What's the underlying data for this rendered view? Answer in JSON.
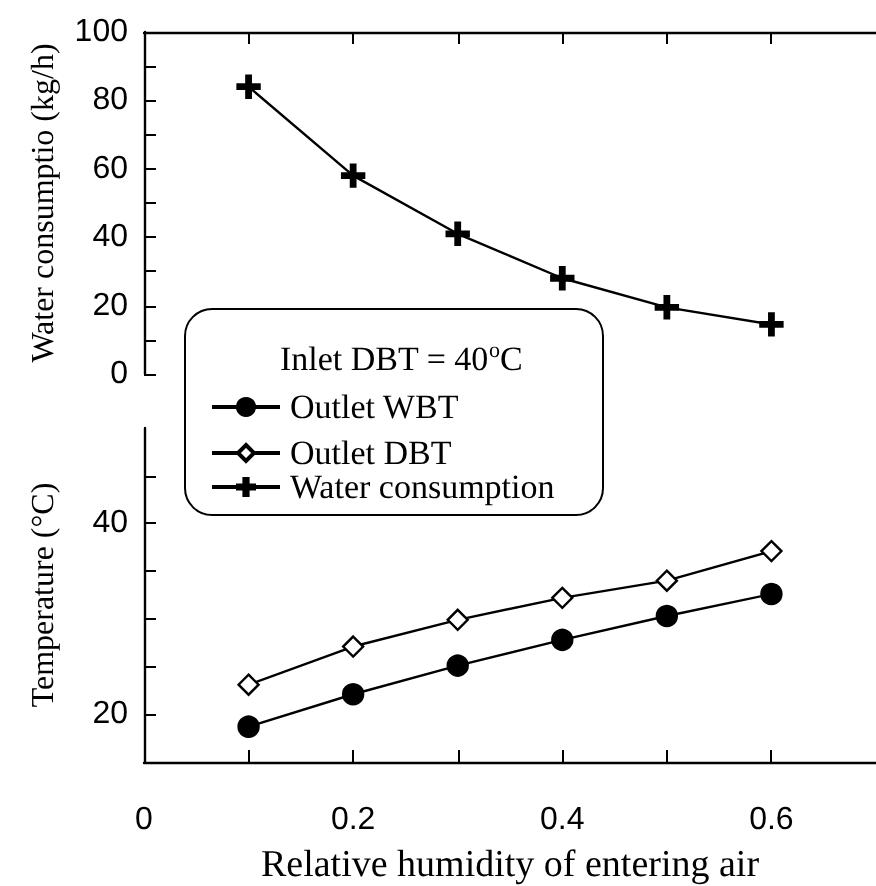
{
  "chart_data": [
    {
      "type": "line",
      "ylabel": "Water consumptio (kg/h)",
      "x": [
        0.1,
        0.2,
        0.3,
        0.4,
        0.5,
        0.6
      ],
      "series": [
        {
          "name": "Water consumption",
          "color": "#000000",
          "marker": "cross",
          "values": [
            84,
            58,
            41,
            28,
            19.5,
            14.5
          ]
        }
      ],
      "xlim": [
        0,
        0.7
      ],
      "xticks": [
        0,
        {
          "value": 0.1,
          "label": null
        },
        0.2,
        {
          "value": 0.3,
          "label": null
        },
        0.4,
        {
          "value": 0.5,
          "label": null
        },
        0.6,
        {
          "value": 0.7,
          "label": null
        }
      ],
      "ylim": [
        0,
        100
      ],
      "yticks": [
        0,
        {
          "value": 10,
          "label": null
        },
        20,
        {
          "value": 30,
          "label": null
        },
        40,
        {
          "value": 50,
          "label": null
        },
        60,
        {
          "value": 70,
          "label": null
        },
        80,
        {
          "value": 90,
          "label": null
        },
        100
      ],
      "tick_labels": "y",
      "grid": false,
      "legend": "bottom left"
    },
    {
      "type": "line",
      "xlabel": "Relative humidity of entering air",
      "ylabel": "Temperature (°C)",
      "legend_title": "Inlet DBT = 40$^{o}$C",
      "x": [
        0.1,
        0.2,
        0.3,
        0.4,
        0.5,
        0.6
      ],
      "series": [
        {
          "name": "Outlet WBT",
          "color": "#000000",
          "marker": "circle",
          "values": [
            18.7,
            22.1,
            25.1,
            27.8,
            30.3,
            32.6
          ]
        },
        {
          "name": "Outlet DBT",
          "color": "#000000",
          "marker": "diamond",
          "values": [
            23.1,
            27.1,
            29.9,
            32.2,
            34.0,
            37.1
          ]
        }
      ],
      "xlim": [
        0,
        0.7
      ],
      "xticks": [
        0,
        {
          "value": 0.1,
          "label": null
        },
        0.2,
        {
          "value": 0.3,
          "label": null
        },
        0.4,
        {
          "value": 0.5,
          "label": null
        },
        0.6,
        {
          "value": 0.7,
          "label": null
        }
      ],
      "ylim": [
        15,
        50
      ],
      "yticks": [
        20,
        {
          "value": 25,
          "label": null
        },
        {
          "value": 30,
          "label": null
        },
        {
          "value": 35,
          "label": null
        },
        40,
        {
          "value": 45,
          "label": null
        }
      ],
      "grid": false,
      "legend": "top left"
    }
  ]
}
